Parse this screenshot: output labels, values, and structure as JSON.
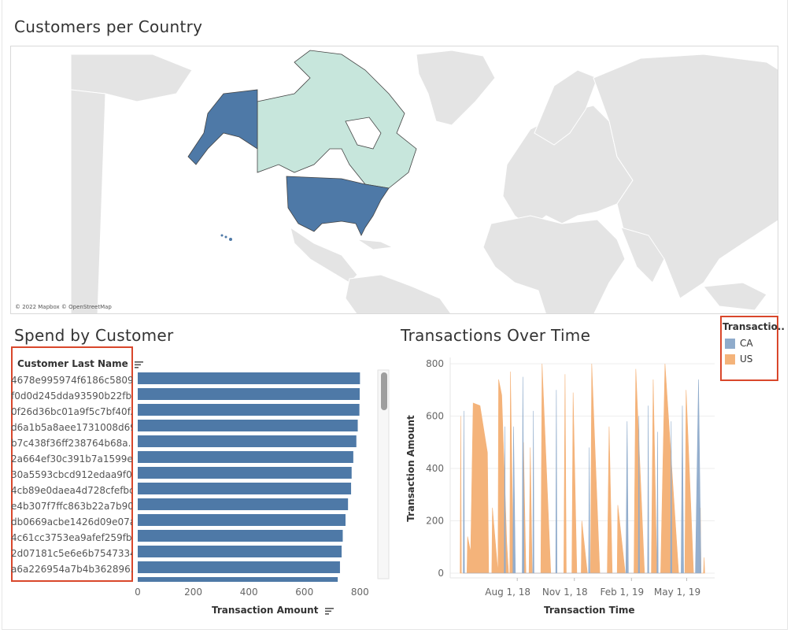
{
  "map": {
    "title": "Customers per Country",
    "attribution": "© 2022 Mapbox © OpenStreetMap",
    "countries": [
      {
        "name": "United States",
        "color": "#4e79a7"
      },
      {
        "name": "Canada",
        "color": "#c7e6dc"
      }
    ]
  },
  "spend": {
    "title": "Spend by Customer",
    "column_header": "Customer Last Name",
    "x_axis_title": "Transaction Amount",
    "bar_color": "#4e79a7"
  },
  "legend": {
    "title": "Transactio..",
    "items": [
      {
        "label": "CA",
        "color": "#8fabcb"
      },
      {
        "label": "US",
        "color": "#f4b37a"
      }
    ]
  },
  "timechart": {
    "title": "Transactions Over Time",
    "x_axis_title": "Transaction Time",
    "y_axis_title": "Transaction Amount"
  },
  "chart_data": [
    {
      "type": "bar",
      "orientation": "horizontal",
      "categories": [
        "4678e995974f6186c5809..",
        "f0d0d245dda93590b22fb..",
        "0f26d36bc01a9f5c7bf40f..",
        "d6a1b5a8aee1731008d69..",
        "b7c438f36ff238764b68a..",
        "2a664ef30c391b7a1599e..",
        "30a5593cbcd912edaa9f0..",
        "4cb89e0daea4d728cfefbc..",
        "e4b307f7ffc863b22a7b90..",
        "db0669acbe1426d09e07a..",
        "4c61cc3753ea9afef259fb..",
        "2d07181c5e6e6b7547334..",
        "a6a226954a7b4b362896.."
      ],
      "values": [
        800,
        799,
        798,
        792,
        787,
        776,
        770,
        768,
        757,
        748,
        738,
        734,
        728
      ],
      "xlabel": "Transaction Amount",
      "xlim": [
        0,
        850
      ],
      "xticks": [
        0,
        200,
        400,
        600,
        800
      ]
    },
    {
      "type": "area",
      "xlabel": "Transaction Time",
      "ylabel": "Transaction Amount",
      "ylim": [
        0,
        800
      ],
      "yticks": [
        0,
        200,
        400,
        600,
        800
      ],
      "x_range": [
        "2018-04-15",
        "2019-06-15"
      ],
      "xticks": [
        {
          "date": "2018-08-01",
          "label": "Aug 1, 18"
        },
        {
          "date": "2018-11-01",
          "label": "Nov 1, 18"
        },
        {
          "date": "2019-02-01",
          "label": "Feb 1, 19"
        },
        {
          "date": "2019-05-01",
          "label": "May 1, 19"
        }
      ],
      "series": [
        {
          "name": "US",
          "points": [
            [
              "2018-05-01",
              0
            ],
            [
              "2018-05-02",
              600
            ],
            [
              "2018-05-03",
              0
            ],
            [
              "2018-05-12",
              0
            ],
            [
              "2018-05-13",
              140
            ],
            [
              "2018-05-18",
              80
            ],
            [
              "2018-05-22",
              650
            ],
            [
              "2018-06-02",
              640
            ],
            [
              "2018-06-14",
              460
            ],
            [
              "2018-06-16",
              0
            ],
            [
              "2018-06-21",
              0
            ],
            [
              "2018-06-22",
              250
            ],
            [
              "2018-07-01",
              0
            ],
            [
              "2018-07-02",
              740
            ],
            [
              "2018-07-07",
              680
            ],
            [
              "2018-07-15",
              120
            ],
            [
              "2018-07-18",
              0
            ],
            [
              "2018-07-20",
              0
            ],
            [
              "2018-07-21",
              770
            ],
            [
              "2018-07-26",
              0
            ],
            [
              "2018-08-10",
              0
            ],
            [
              "2018-08-11",
              500
            ],
            [
              "2018-08-15",
              0
            ],
            [
              "2018-08-20",
              0
            ],
            [
              "2018-08-22",
              480
            ],
            [
              "2018-08-25",
              0
            ],
            [
              "2018-09-08",
              0
            ],
            [
              "2018-09-10",
              800
            ],
            [
              "2018-09-24",
              0
            ],
            [
              "2018-10-15",
              0
            ],
            [
              "2018-10-17",
              760
            ],
            [
              "2018-10-19",
              0
            ],
            [
              "2018-10-28",
              0
            ],
            [
              "2018-10-30",
              690
            ],
            [
              "2018-11-05",
              0
            ],
            [
              "2018-11-12",
              0
            ],
            [
              "2018-11-13",
              200
            ],
            [
              "2018-11-22",
              0
            ],
            [
              "2018-11-27",
              0
            ],
            [
              "2018-11-29",
              800
            ],
            [
              "2018-12-12",
              0
            ],
            [
              "2018-12-24",
              0
            ],
            [
              "2018-12-27",
              560
            ],
            [
              "2019-01-01",
              0
            ],
            [
              "2019-01-09",
              0
            ],
            [
              "2019-01-10",
              260
            ],
            [
              "2019-01-22",
              0
            ],
            [
              "2019-02-05",
              0
            ],
            [
              "2019-02-08",
              780
            ],
            [
              "2019-02-22",
              0
            ],
            [
              "2019-03-05",
              0
            ],
            [
              "2019-03-08",
              740
            ],
            [
              "2019-03-14",
              0
            ],
            [
              "2019-03-20",
              0
            ],
            [
              "2019-03-27",
              800
            ],
            [
              "2019-04-18",
              0
            ],
            [
              "2019-04-28",
              0
            ],
            [
              "2019-04-30",
              700
            ],
            [
              "2019-05-12",
              0
            ],
            [
              "2019-05-22",
              0
            ],
            [
              "2019-05-23",
              250
            ],
            [
              "2019-05-24",
              0
            ],
            [
              "2019-05-28",
              0
            ],
            [
              "2019-05-29",
              60
            ],
            [
              "2019-05-30",
              0
            ]
          ]
        },
        {
          "name": "CA",
          "points": [
            [
              "2018-05-06",
              0
            ],
            [
              "2018-05-07",
              620
            ],
            [
              "2018-05-08",
              0
            ],
            [
              "2018-07-11",
              0
            ],
            [
              "2018-07-12",
              560
            ],
            [
              "2018-07-13",
              0
            ],
            [
              "2018-07-25",
              0
            ],
            [
              "2018-07-26",
              560
            ],
            [
              "2018-07-29",
              0
            ],
            [
              "2018-08-09",
              0
            ],
            [
              "2018-08-10",
              750
            ],
            [
              "2018-08-12",
              0
            ],
            [
              "2018-08-26",
              0
            ],
            [
              "2018-08-27",
              620
            ],
            [
              "2018-08-28",
              0
            ],
            [
              "2018-10-02",
              0
            ],
            [
              "2018-10-03",
              700
            ],
            [
              "2018-10-04",
              0
            ],
            [
              "2018-11-24",
              0
            ],
            [
              "2018-11-25",
              480
            ],
            [
              "2018-11-26",
              0
            ],
            [
              "2019-01-23",
              0
            ],
            [
              "2019-01-25",
              580
            ],
            [
              "2019-01-27",
              0
            ],
            [
              "2019-02-12",
              0
            ],
            [
              "2019-02-13",
              600
            ],
            [
              "2019-02-14",
              0
            ],
            [
              "2019-02-27",
              0
            ],
            [
              "2019-02-28",
              640
            ],
            [
              "2019-03-01",
              0
            ],
            [
              "2019-03-14",
              0
            ],
            [
              "2019-03-15",
              540
            ],
            [
              "2019-03-16",
              0
            ],
            [
              "2019-04-05",
              0
            ],
            [
              "2019-04-06",
              580
            ],
            [
              "2019-04-07",
              0
            ],
            [
              "2019-04-22",
              0
            ],
            [
              "2019-04-24",
              640
            ],
            [
              "2019-04-26",
              0
            ],
            [
              "2019-05-15",
              0
            ],
            [
              "2019-05-20",
              740
            ],
            [
              "2019-05-24",
              0
            ]
          ]
        }
      ]
    }
  ]
}
